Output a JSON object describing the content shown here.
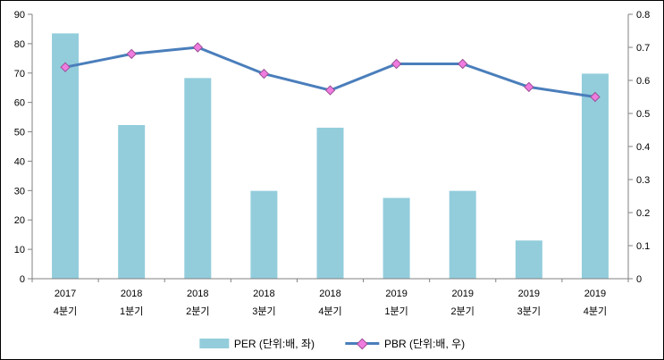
{
  "chart_data": {
    "type": "combo",
    "title": "",
    "categories": [
      [
        "2017",
        "4분기"
      ],
      [
        "2018",
        "1분기"
      ],
      [
        "2018",
        "2분기"
      ],
      [
        "2018",
        "3분기"
      ],
      [
        "2018",
        "4분기"
      ],
      [
        "2019",
        "1분기"
      ],
      [
        "2019",
        "2분기"
      ],
      [
        "2019",
        "3분기"
      ],
      [
        "2019",
        "4분기"
      ]
    ],
    "series": [
      {
        "name": "PER (단위:배, 좌)",
        "type": "bar",
        "axis": "left",
        "values": [
          83.5,
          52.3,
          68.3,
          29.9,
          51.4,
          27.5,
          29.9,
          13.0,
          69.8
        ]
      },
      {
        "name": "PBR (단위:배, 우)",
        "type": "line",
        "axis": "right",
        "values": [
          0.64,
          0.68,
          0.7,
          0.62,
          0.57,
          0.65,
          0.65,
          0.58,
          0.55
        ]
      }
    ],
    "left_axis": {
      "min": 0,
      "max": 90,
      "step": 10,
      "tick_labels": [
        "0",
        "10",
        "20",
        "30",
        "40",
        "50",
        "60",
        "70",
        "80",
        "90"
      ]
    },
    "right_axis": {
      "min": 0,
      "max": 0.8,
      "step": 0.1,
      "tick_labels": [
        "0",
        "0.1",
        "0.2",
        "0.3",
        "0.4",
        "0.5",
        "0.6",
        "0.7",
        "0.8"
      ]
    },
    "grid": false,
    "legend_position": "bottom",
    "colors": {
      "bar": "#93CDDC",
      "line": "#4A7EBB",
      "marker_fill": "#F07CE0",
      "marker_stroke": "#9B4F96",
      "axis": "#808080",
      "text": "#000000"
    }
  }
}
